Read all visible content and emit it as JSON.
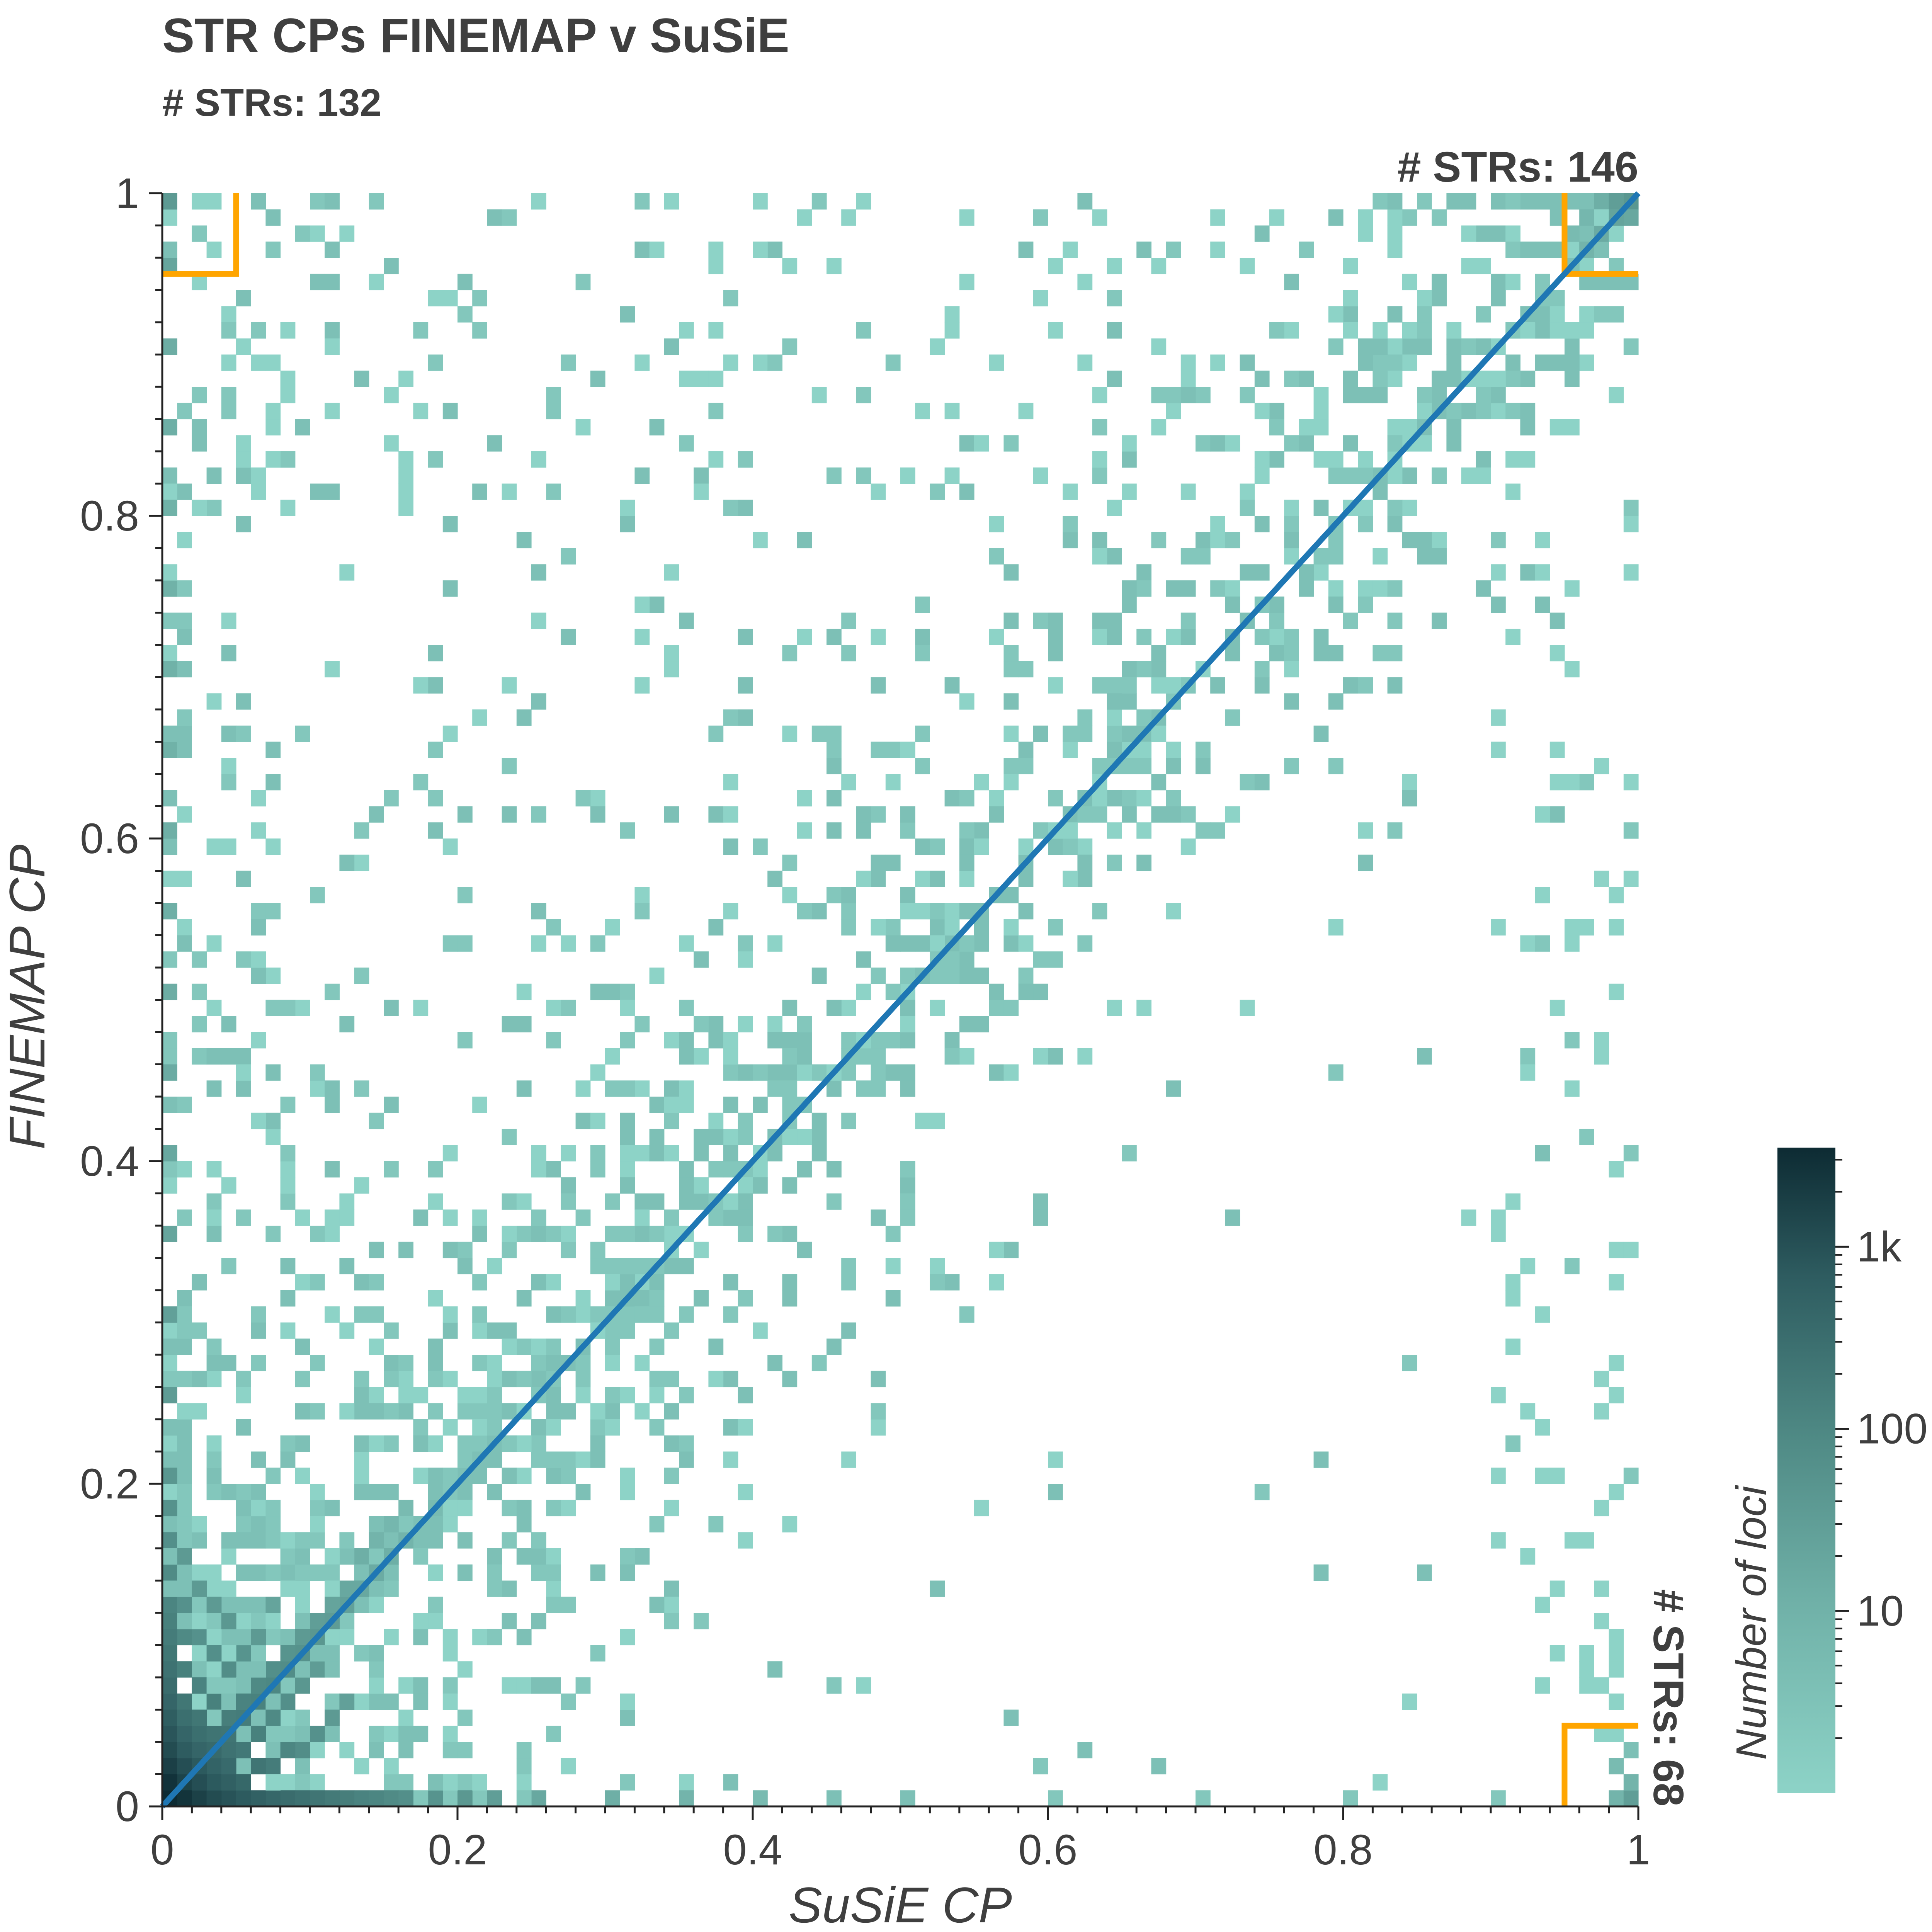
{
  "chart_data": {
    "type": "heatmap",
    "title": "STR CPs FINEMAP v SuSiE",
    "subtitle": "# STRs: 132",
    "xlabel": "SuSiE CP",
    "ylabel": "FINEMAP CP",
    "xlim": [
      0,
      1
    ],
    "ylim": [
      0,
      1
    ],
    "x_ticks": [
      "0",
      "0.2",
      "0.4",
      "0.6",
      "0.8",
      "1"
    ],
    "y_ticks": [
      "0",
      "0.2",
      "0.4",
      "0.6",
      "0.8",
      "1"
    ],
    "bins": 100,
    "color_scale": "log",
    "colors": {
      "low": "#8dd3c7",
      "high": "#0d2b33",
      "diagonal": "#1f77b4",
      "region": "#ffa500",
      "text": "#3f3f3f"
    },
    "colorbar": {
      "label": "Number of loci",
      "ticks": [
        {
          "label": "10",
          "value": 10
        },
        {
          "label": "100",
          "value": 100
        },
        {
          "label": "1k",
          "value": 1000
        }
      ],
      "range": [
        1,
        3500
      ]
    },
    "region_counts": [
      {
        "region": "top-left",
        "label": "# STRs: 132"
      },
      {
        "region": "top-right",
        "label": "# STRs: 146"
      },
      {
        "region": "bottom-right",
        "label": "# STRs: 68"
      }
    ],
    "region_threshold": {
      "low": 0.05,
      "high": 0.95
    },
    "diagonal": [
      [
        0,
        0
      ],
      [
        1,
        1
      ]
    ],
    "cells": [
      [
        0,
        0,
        3500
      ],
      [
        0,
        1,
        2600
      ],
      [
        0,
        2,
        1500
      ],
      [
        0,
        3,
        900
      ],
      [
        0,
        4,
        600
      ],
      [
        0,
        5,
        420
      ],
      [
        0,
        6,
        300
      ],
      [
        0,
        7,
        220
      ],
      [
        0,
        8,
        170
      ],
      [
        0,
        9,
        140
      ],
      [
        0,
        10,
        110
      ],
      [
        0,
        11,
        90
      ],
      [
        0,
        12,
        75
      ],
      [
        0,
        14,
        55
      ],
      [
        0,
        16,
        45
      ],
      [
        0,
        18,
        38
      ],
      [
        0,
        20,
        30
      ],
      [
        0,
        25,
        22
      ],
      [
        0,
        30,
        18
      ],
      [
        0,
        35,
        14
      ],
      [
        0,
        40,
        12
      ],
      [
        0,
        45,
        10
      ],
      [
        0,
        50,
        9
      ],
      [
        0,
        55,
        8
      ],
      [
        0,
        60,
        8
      ],
      [
        0,
        65,
        7
      ],
      [
        0,
        70,
        7
      ],
      [
        0,
        75,
        7
      ],
      [
        0,
        80,
        7
      ],
      [
        0,
        85,
        8
      ],
      [
        0,
        90,
        9
      ],
      [
        0,
        95,
        14
      ],
      [
        0,
        99,
        25
      ],
      [
        1,
        0,
        2400
      ],
      [
        1,
        1,
        1300
      ],
      [
        1,
        2,
        800
      ],
      [
        1,
        3,
        450
      ],
      [
        1,
        4,
        300
      ],
      [
        1,
        5,
        200
      ],
      [
        1,
        6,
        140
      ],
      [
        1,
        8,
        90
      ],
      [
        1,
        10,
        60
      ],
      [
        1,
        12,
        40
      ],
      [
        1,
        15,
        25
      ],
      [
        2,
        0,
        1400
      ],
      [
        2,
        1,
        800
      ],
      [
        2,
        2,
        500
      ],
      [
        2,
        3,
        300
      ],
      [
        2,
        4,
        200
      ],
      [
        2,
        5,
        140
      ],
      [
        2,
        7,
        80
      ],
      [
        2,
        10,
        40
      ],
      [
        2,
        13,
        25
      ],
      [
        3,
        0,
        900
      ],
      [
        3,
        1,
        500
      ],
      [
        3,
        2,
        330
      ],
      [
        3,
        3,
        250
      ],
      [
        3,
        4,
        160
      ],
      [
        3,
        6,
        90
      ],
      [
        3,
        9,
        45
      ],
      [
        3,
        12,
        25
      ],
      [
        4,
        0,
        650
      ],
      [
        4,
        1,
        380
      ],
      [
        4,
        2,
        240
      ],
      [
        4,
        3,
        170
      ],
      [
        4,
        4,
        150
      ],
      [
        4,
        5,
        100
      ],
      [
        4,
        8,
        50
      ],
      [
        4,
        11,
        28
      ],
      [
        5,
        0,
        480
      ],
      [
        5,
        1,
        270
      ],
      [
        5,
        3,
        130
      ],
      [
        5,
        5,
        110
      ],
      [
        5,
        6,
        80
      ],
      [
        5,
        9,
        35
      ],
      [
        6,
        0,
        360
      ],
      [
        6,
        2,
        150
      ],
      [
        6,
        4,
        90
      ],
      [
        6,
        6,
        85
      ],
      [
        6,
        7,
        60
      ],
      [
        6,
        10,
        25
      ],
      [
        7,
        0,
        280
      ],
      [
        7,
        2,
        110
      ],
      [
        7,
        5,
        60
      ],
      [
        7,
        7,
        65
      ],
      [
        7,
        8,
        45
      ],
      [
        7,
        12,
        15
      ],
      [
        8,
        0,
        220
      ],
      [
        8,
        3,
        70
      ],
      [
        8,
        6,
        45
      ],
      [
        8,
        8,
        50
      ],
      [
        8,
        9,
        35
      ],
      [
        9,
        0,
        180
      ],
      [
        9,
        3,
        50
      ],
      [
        9,
        7,
        30
      ],
      [
        9,
        9,
        38
      ],
      [
        9,
        10,
        25
      ],
      [
        10,
        0,
        150
      ],
      [
        10,
        4,
        40
      ],
      [
        10,
        8,
        22
      ],
      [
        10,
        10,
        30
      ],
      [
        10,
        11,
        20
      ],
      [
        11,
        0,
        120
      ],
      [
        11,
        5,
        25
      ],
      [
        11,
        11,
        22
      ],
      [
        11,
        12,
        15
      ],
      [
        12,
        0,
        100
      ],
      [
        12,
        6,
        18
      ],
      [
        12,
        12,
        18
      ],
      [
        12,
        13,
        12
      ],
      [
        13,
        0,
        80
      ],
      [
        13,
        13,
        12
      ],
      [
        13,
        15,
        8
      ],
      [
        14,
        0,
        70
      ],
      [
        14,
        14,
        10
      ],
      [
        14,
        16,
        6
      ],
      [
        15,
        0,
        55
      ],
      [
        15,
        15,
        8
      ],
      [
        15,
        17,
        5
      ],
      [
        16,
        0,
        45
      ],
      [
        16,
        16,
        6
      ],
      [
        16,
        18,
        4
      ],
      [
        18,
        0,
        35
      ],
      [
        18,
        18,
        4
      ],
      [
        18,
        20,
        3
      ],
      [
        20,
        0,
        28
      ],
      [
        20,
        20,
        3
      ],
      [
        20,
        22,
        2
      ],
      [
        22,
        0,
        20
      ],
      [
        22,
        22,
        3
      ],
      [
        22,
        24,
        2
      ],
      [
        25,
        0,
        12
      ],
      [
        25,
        25,
        2
      ],
      [
        25,
        27,
        2
      ],
      [
        30,
        0,
        8
      ],
      [
        30,
        30,
        2
      ],
      [
        30,
        32,
        1
      ],
      [
        35,
        0,
        6
      ],
      [
        35,
        35,
        1
      ],
      [
        40,
        0,
        4
      ],
      [
        40,
        40,
        1
      ],
      [
        45,
        0,
        3
      ],
      [
        45,
        45,
        1
      ],
      [
        50,
        0,
        3
      ],
      [
        50,
        50,
        1
      ],
      [
        60,
        0,
        2
      ],
      [
        60,
        60,
        1
      ],
      [
        70,
        0,
        2
      ],
      [
        70,
        70,
        1
      ],
      [
        80,
        0,
        2
      ],
      [
        80,
        80,
        1
      ],
      [
        90,
        0,
        2
      ],
      [
        90,
        90,
        1
      ],
      [
        98,
        0,
        6
      ],
      [
        98,
        2,
        4
      ],
      [
        99,
        0,
        20
      ],
      [
        99,
        1,
        6
      ],
      [
        99,
        3,
        3
      ],
      [
        99,
        20,
        2
      ],
      [
        99,
        40,
        2
      ],
      [
        99,
        60,
        2
      ],
      [
        99,
        80,
        2
      ],
      [
        99,
        90,
        2
      ],
      [
        96,
        96,
        6
      ],
      [
        97,
        97,
        10
      ],
      [
        98,
        98,
        15
      ],
      [
        99,
        99,
        30
      ],
      [
        98,
        99,
        20
      ],
      [
        99,
        98,
        12
      ],
      [
        97,
        99,
        8
      ],
      [
        96,
        98,
        5
      ],
      [
        95,
        97,
        4
      ],
      [
        92,
        96,
        3
      ],
      [
        90,
        93,
        3
      ],
      [
        88,
        90,
        2
      ],
      [
        85,
        92,
        2
      ],
      [
        82,
        88,
        2
      ],
      [
        80,
        95,
        1
      ],
      [
        78,
        85,
        1
      ]
    ],
    "scatter_seed": 20240607
  }
}
